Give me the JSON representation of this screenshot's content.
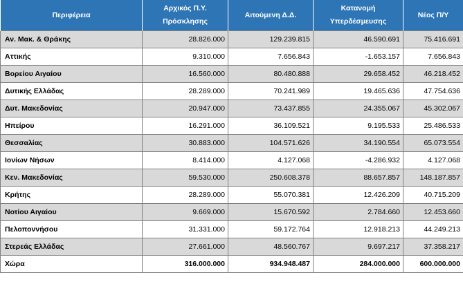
{
  "headers": [
    "Περιφέρεια",
    "Αρχικός Π.Υ.\nΠρόσκλησης",
    "Αιτούμενη Δ.Δ.",
    "Κατανομή\nΥπερδέσμευσης",
    "Νέος Π/Υ"
  ],
  "rows": [
    {
      "region": "Αν. Μακ. & Θράκης",
      "initial": "28.826.000",
      "requested": "129.239.815",
      "allocation": "46.590.691",
      "new_budget": "75.416.691"
    },
    {
      "region": "Αττικής",
      "initial": "9.310.000",
      "requested": "7.656.843",
      "allocation": "-1.653.157",
      "new_budget": "7.656.843"
    },
    {
      "region": "Βορείου Αιγαίου",
      "initial": "16.560.000",
      "requested": "80.480.888",
      "allocation": "29.658.452",
      "new_budget": "46.218.452"
    },
    {
      "region": "Δυτικής Ελλάδας",
      "initial": "28.289.000",
      "requested": "70.241.989",
      "allocation": "19.465.636",
      "new_budget": "47.754.636"
    },
    {
      "region": "Δυτ. Μακεδονίας",
      "initial": "20.947.000",
      "requested": "73.437.855",
      "allocation": "24.355.067",
      "new_budget": "45.302.067"
    },
    {
      "region": "Ηπείρου",
      "initial": "16.291.000",
      "requested": "36.109.521",
      "allocation": "9.195.533",
      "new_budget": "25.486.533"
    },
    {
      "region": "Θεσσαλίας",
      "initial": "30.883.000",
      "requested": "104.571.626",
      "allocation": "34.190.554",
      "new_budget": "65.073.554"
    },
    {
      "region": "Ιονίων Νήσων",
      "initial": "8.414.000",
      "requested": "4.127.068",
      "allocation": "-4.286.932",
      "new_budget": "4.127.068"
    },
    {
      "region": "Κεν. Μακεδονίας",
      "initial": "59.530.000",
      "requested": "250.608.378",
      "allocation": "88.657.857",
      "new_budget": "148.187.857"
    },
    {
      "region": "Κρήτης",
      "initial": "28.289.000",
      "requested": "55.070.381",
      "allocation": "12.426.209",
      "new_budget": "40.715.209"
    },
    {
      "region": "Νοτίου Αιγαίου",
      "initial": "9.669.000",
      "requested": "15.670.592",
      "allocation": "2.784.660",
      "new_budget": "12.453.660"
    },
    {
      "region": "Πελοποννήσου",
      "initial": "31.331.000",
      "requested": "59.172.764",
      "allocation": "12.918.213",
      "new_budget": "44.249.213"
    },
    {
      "region": "Στερεάς Ελλάδας",
      "initial": "27.661.000",
      "requested": "48.560.767",
      "allocation": "9.697.217",
      "new_budget": "37.358.217"
    }
  ],
  "total": {
    "region": "Χώρα",
    "initial": "316.000.000",
    "requested": "934.948.487",
    "allocation": "284.000.000",
    "new_budget": "600.000.000"
  }
}
